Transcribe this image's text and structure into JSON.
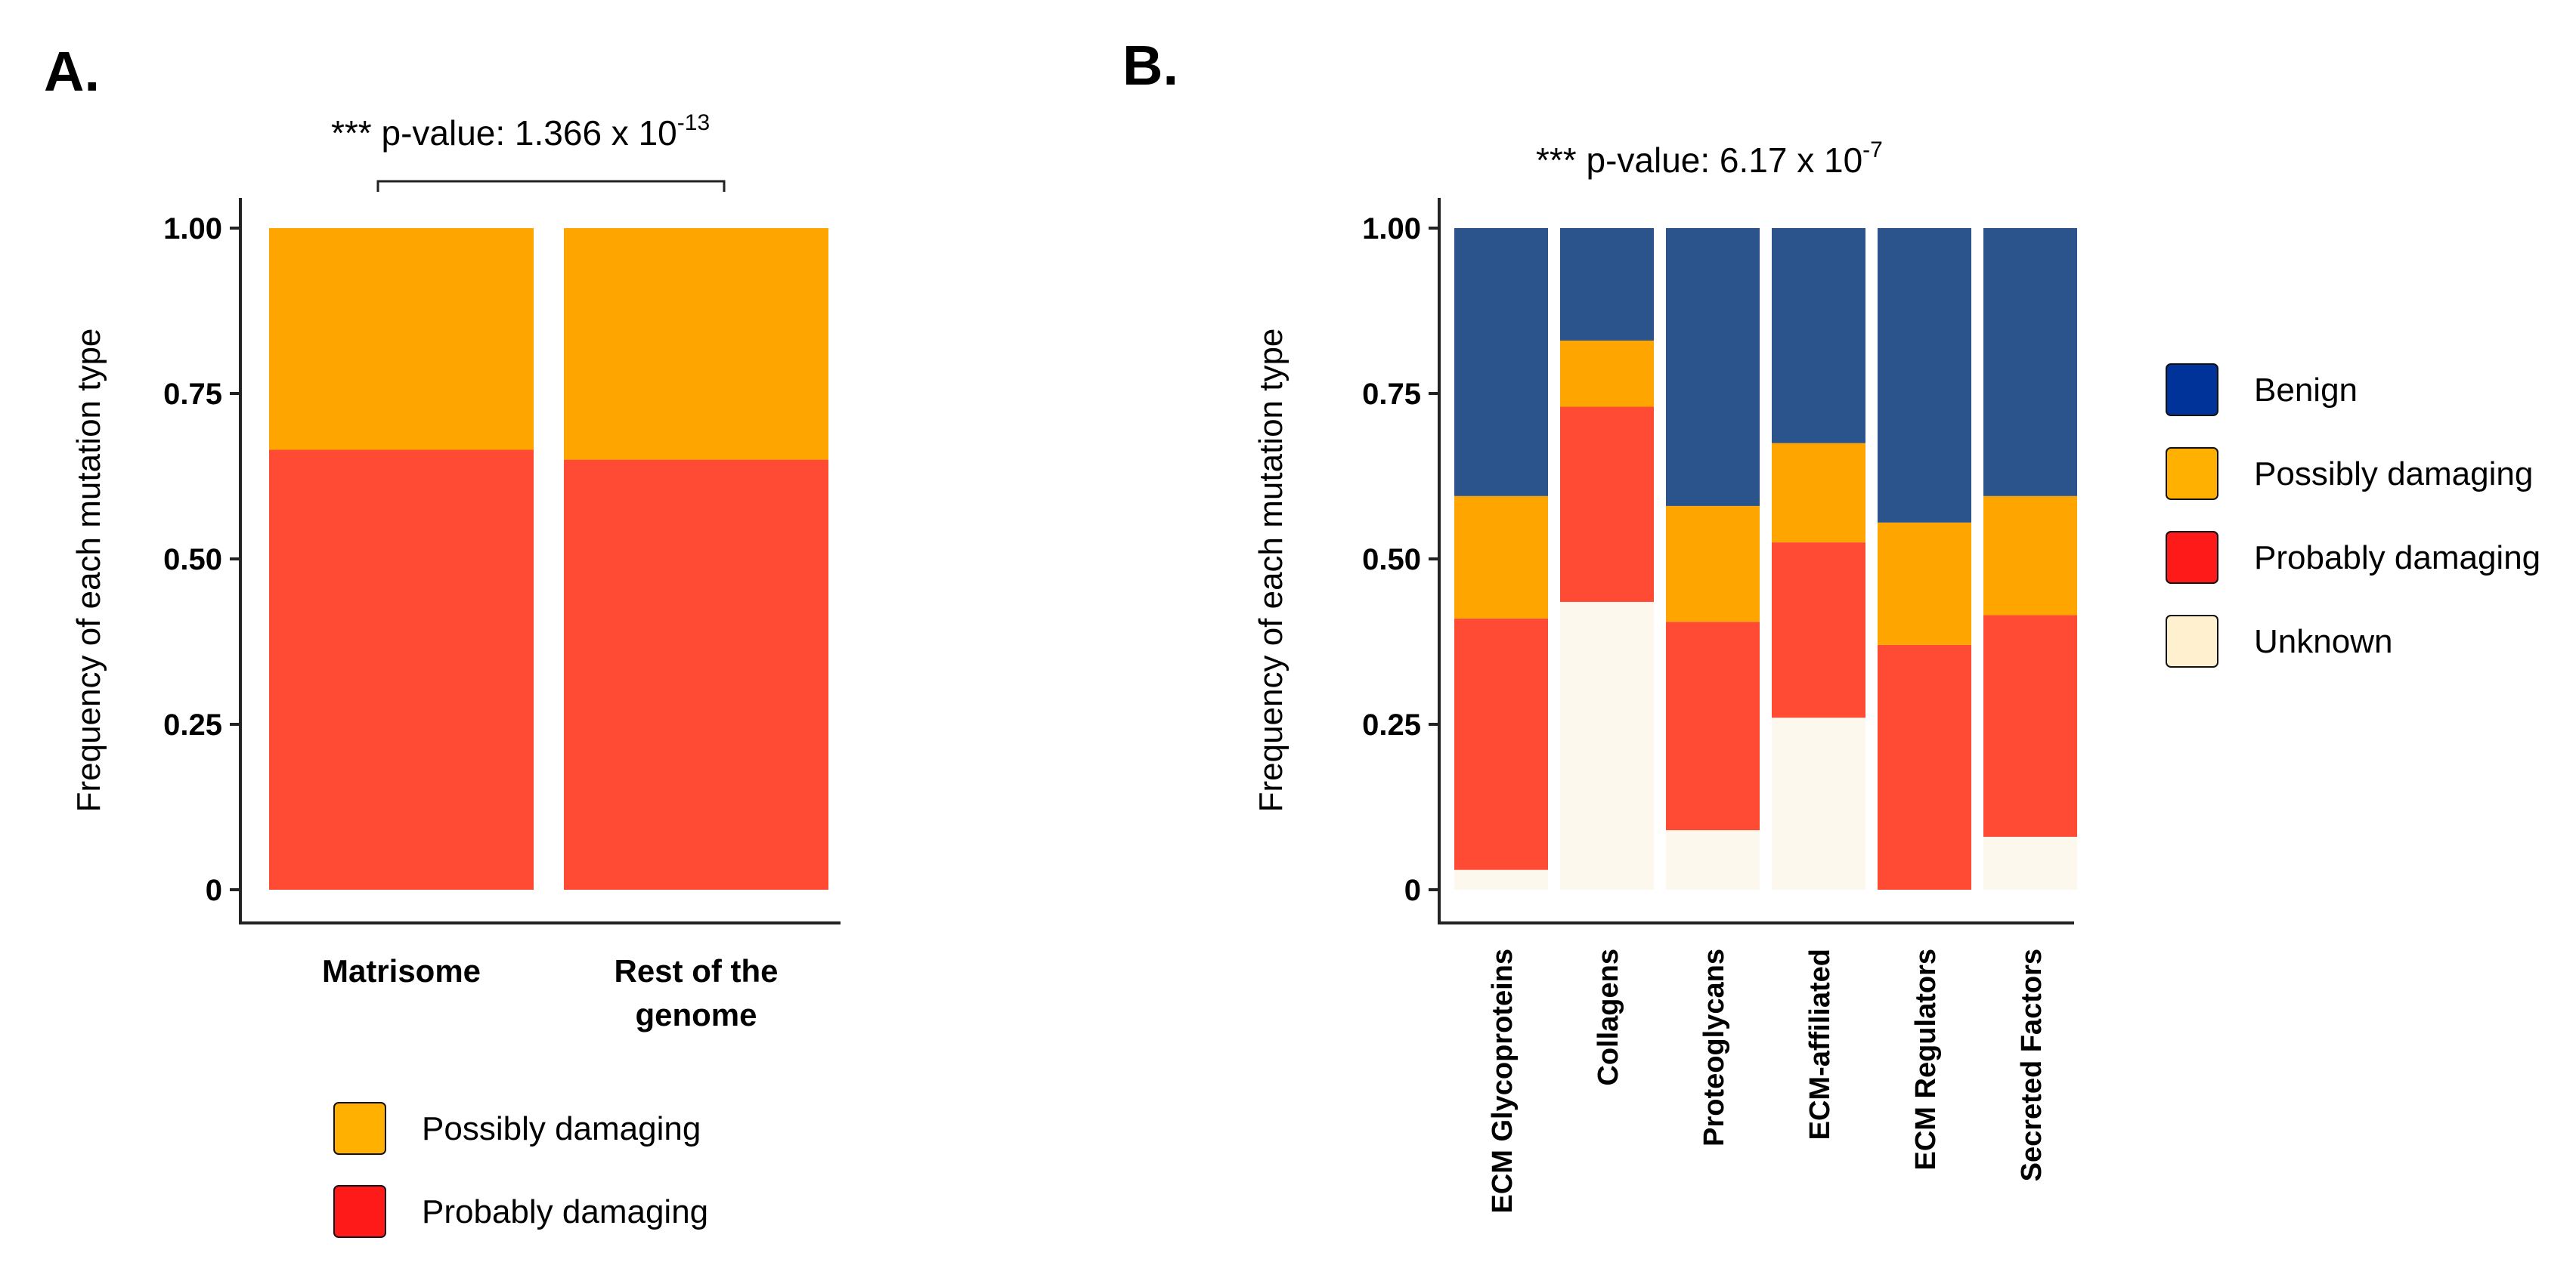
{
  "chart_data": [
    {
      "panel_label": "A.",
      "type": "bar",
      "stacked": true,
      "annotation": {
        "prefix": "*** p-value: 1.366 x 10",
        "exponent": "-13"
      },
      "ylabel": "Frequency of each mutation type",
      "ylim": [
        0,
        1
      ],
      "yticks": [
        "0",
        "0.25",
        "0.50",
        "0.75",
        "1.00"
      ],
      "categories": [
        "Matrisome",
        "Rest of the genome"
      ],
      "series": [
        {
          "name": "Probably damaging",
          "color": "#FF4B33",
          "values": [
            0.665,
            0.65
          ]
        },
        {
          "name": "Possibly damaging",
          "color": "#FFA500",
          "values": [
            0.335,
            0.35
          ]
        }
      ],
      "legend": [
        {
          "label": "Possibly damaging",
          "color": "#FFB000"
        },
        {
          "label": "Probably damaging",
          "color": "#FF1A1A"
        }
      ]
    },
    {
      "panel_label": "B.",
      "type": "bar",
      "stacked": true,
      "annotation": {
        "prefix": "*** p-value: 6.17 x 10",
        "exponent": "-7"
      },
      "ylabel": "Frequency of each mutation type",
      "ylim": [
        0,
        1
      ],
      "yticks": [
        "0",
        "0.25",
        "0.50",
        "0.75",
        "1.00"
      ],
      "categories": [
        "ECM Glycoproteins",
        "Collagens",
        "Proteoglycans",
        "ECM-affiliated",
        "ECM Regulators",
        "Secreted Factors"
      ],
      "series": [
        {
          "name": "Unknown",
          "color": "#FDF8EE",
          "values": [
            0.03,
            0.435,
            0.09,
            0.26,
            0.0,
            0.08
          ]
        },
        {
          "name": "Probably damaging",
          "color": "#FF4B33",
          "values": [
            0.38,
            0.295,
            0.315,
            0.265,
            0.37,
            0.335
          ]
        },
        {
          "name": "Possibly damaging",
          "color": "#FFA500",
          "values": [
            0.185,
            0.1,
            0.175,
            0.15,
            0.185,
            0.18
          ]
        },
        {
          "name": "Benign",
          "color": "#2B548C",
          "values": [
            0.405,
            0.17,
            0.42,
            0.325,
            0.445,
            0.405
          ]
        }
      ],
      "legend": [
        {
          "label": "Benign",
          "color": "#003399"
        },
        {
          "label": "Possibly damaging",
          "color": "#FFB000"
        },
        {
          "label": "Probably damaging",
          "color": "#FF1A1A"
        },
        {
          "label": "Unknown",
          "color": "#FFF0D0"
        }
      ]
    }
  ]
}
